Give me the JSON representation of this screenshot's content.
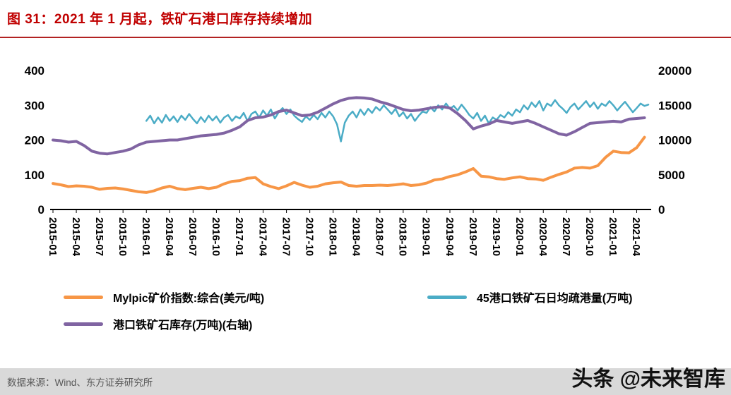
{
  "header": {
    "title": "图 31：2021 年 1 月起，铁矿石港口库存持续增加"
  },
  "footer": {
    "source": "数据来源：Wind、东方证券研究所",
    "watermark": "头条 @未来智库"
  },
  "legend": [
    {
      "label": "Mylpic矿价指数:综合(美元/吨)",
      "color": "#F79646"
    },
    {
      "label": "45港口铁矿石日均疏港量(万吨)",
      "color": "#4BACC6"
    },
    {
      "label": "港口铁矿石库存(万吨)(右轴)",
      "color": "#8064A2"
    }
  ],
  "chart_data": {
    "type": "line",
    "title": "图 31：2021 年 1 月起，铁矿石港口库存持续增加",
    "x_tick_labels": [
      "2015-01",
      "2015-04",
      "2015-07",
      "2015-10",
      "2016-01",
      "2016-04",
      "2016-07",
      "2016-10",
      "2017-01",
      "2017-04",
      "2017-07",
      "2017-10",
      "2018-01",
      "2018-04",
      "2018-07",
      "2018-10",
      "2019-01",
      "2019-04",
      "2019-07",
      "2019-10",
      "2020-01",
      "2020-04",
      "2020-07",
      "2020-10",
      "2021-01",
      "2021-04"
    ],
    "x_tick_step_months": 3,
    "x_total_months": 76.5,
    "left_axis": {
      "min": 0,
      "max": 400,
      "ticks": [
        0,
        100,
        200,
        300,
        400
      ]
    },
    "right_axis": {
      "min": 0,
      "max": 20000,
      "ticks": [
        0,
        5000,
        10000,
        15000,
        20000
      ]
    },
    "grid": false,
    "legend_position": "bottom",
    "series": [
      {
        "name": "Mylpic矿价指数:综合(美元/吨)",
        "axis": "left",
        "color": "#F79646",
        "stroke_width": 4,
        "start_month_index": 0,
        "points_per_month": 1,
        "values": [
          75,
          71,
          66,
          68,
          67,
          64,
          58,
          61,
          62,
          59,
          55,
          51,
          49,
          54,
          62,
          67,
          60,
          57,
          61,
          64,
          60,
          64,
          74,
          81,
          83,
          90,
          92,
          74,
          66,
          60,
          68,
          78,
          70,
          64,
          67,
          74,
          77,
          79,
          69,
          67,
          69,
          69,
          70,
          69,
          71,
          74,
          69,
          71,
          76,
          85,
          88,
          95,
          100,
          108,
          118,
          96,
          94,
          89,
          87,
          91,
          94,
          89,
          88,
          84,
          93,
          101,
          108,
          119,
          121,
          119,
          126,
          150,
          168,
          164,
          163,
          178,
          208
        ]
      },
      {
        "name": "45港口铁矿石日均疏港量(万吨)",
        "axis": "left",
        "color": "#4BACC6",
        "stroke_width": 2.5,
        "start_month_index": 12,
        "points_per_month": 2,
        "values": [
          255,
          270,
          248,
          265,
          250,
          272,
          255,
          268,
          252,
          270,
          258,
          275,
          260,
          248,
          266,
          252,
          270,
          256,
          268,
          250,
          265,
          272,
          255,
          268,
          262,
          278,
          255,
          275,
          282,
          265,
          285,
          270,
          288,
          262,
          280,
          292,
          275,
          288,
          270,
          260,
          252,
          268,
          258,
          272,
          260,
          278,
          265,
          282,
          268,
          245,
          196,
          250,
          270,
          282,
          265,
          288,
          272,
          290,
          278,
          295,
          285,
          300,
          288,
          275,
          290,
          268,
          280,
          262,
          275,
          255,
          270,
          282,
          278,
          295,
          282,
          300,
          288,
          305,
          290,
          298,
          285,
          302,
          288,
          272,
          262,
          278,
          255,
          270,
          248,
          265,
          258,
          272,
          265,
          280,
          270,
          288,
          280,
          300,
          288,
          308,
          295,
          312,
          285,
          305,
          298,
          315,
          300,
          290,
          278,
          295,
          305,
          288,
          300,
          312,
          295,
          308,
          290,
          305,
          298,
          312,
          300,
          285,
          298,
          310,
          295,
          280,
          292,
          305,
          298,
          302
        ]
      },
      {
        "name": "港口铁矿石库存(万吨)(右轴)",
        "axis": "right",
        "color": "#8064A2",
        "stroke_width": 4,
        "start_month_index": 0,
        "points_per_month": 1,
        "values": [
          10000,
          9900,
          9700,
          9800,
          9200,
          8400,
          8100,
          8000,
          8200,
          8400,
          8700,
          9300,
          9700,
          9800,
          9900,
          10000,
          10000,
          10200,
          10400,
          10600,
          10700,
          10800,
          11000,
          11400,
          11900,
          12800,
          13200,
          13300,
          13600,
          14100,
          14300,
          13900,
          13500,
          13600,
          14000,
          14600,
          15200,
          15700,
          16000,
          16100,
          16050,
          15900,
          15500,
          15200,
          14800,
          14400,
          14200,
          14300,
          14500,
          14700,
          14800,
          14600,
          13800,
          12800,
          11600,
          12000,
          12300,
          12800,
          12600,
          12400,
          12600,
          12800,
          12400,
          11900,
          11400,
          10900,
          10700,
          11200,
          11800,
          12400,
          12500,
          12600,
          12700,
          12600,
          13000,
          13100,
          13200
        ]
      }
    ]
  }
}
